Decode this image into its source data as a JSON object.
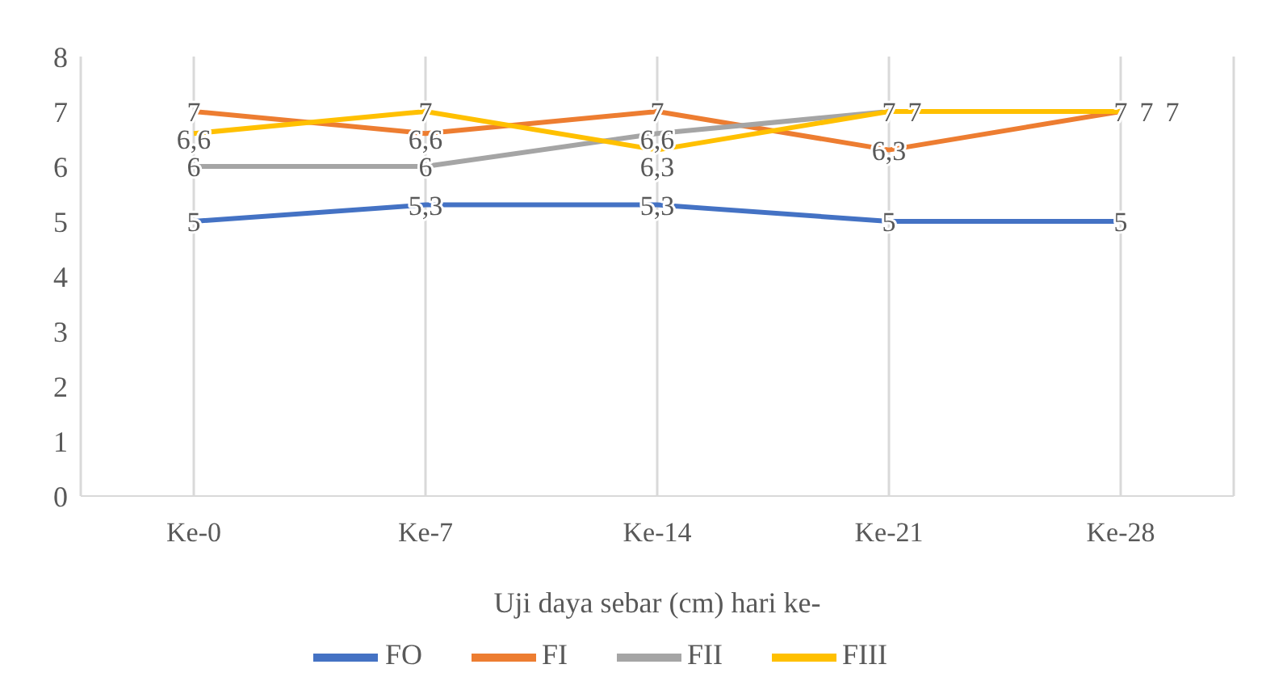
{
  "chart_data": {
    "type": "line",
    "xlabel": "Uji daya sebar (cm) hari ke-",
    "categories": [
      "Ke-0",
      "Ke-7",
      "Ke-14",
      "Ke-21",
      "Ke-28"
    ],
    "series": [
      {
        "name": "FO",
        "color": "#4472c4",
        "values": [
          5,
          5.3,
          5.3,
          5,
          5
        ],
        "value_labels": [
          "5",
          "5,3",
          "5,3",
          "5",
          "5"
        ]
      },
      {
        "name": "FI",
        "color": "#ed7d31",
        "values": [
          7,
          6.6,
          7,
          6.3,
          7
        ],
        "value_labels": [
          "7",
          "6,6",
          "7",
          "6,3",
          "7"
        ]
      },
      {
        "name": "FII",
        "color": "#a5a5a5",
        "values": [
          6,
          6,
          6.6,
          7,
          7
        ],
        "value_labels": [
          "6",
          "6",
          "6,6",
          "7",
          "7"
        ]
      },
      {
        "name": "FIII",
        "color": "#ffc000",
        "values": [
          6.6,
          7,
          6.3,
          7,
          7
        ],
        "value_labels": [
          "6,6",
          "7",
          "6,3",
          "7",
          "7"
        ]
      }
    ],
    "ylim": [
      0,
      8
    ],
    "yticks": [
      0,
      1,
      2,
      3,
      4,
      5,
      6,
      7,
      8
    ],
    "grid": "x",
    "legend": "bottom",
    "marker": "none",
    "line_style": "solid"
  }
}
